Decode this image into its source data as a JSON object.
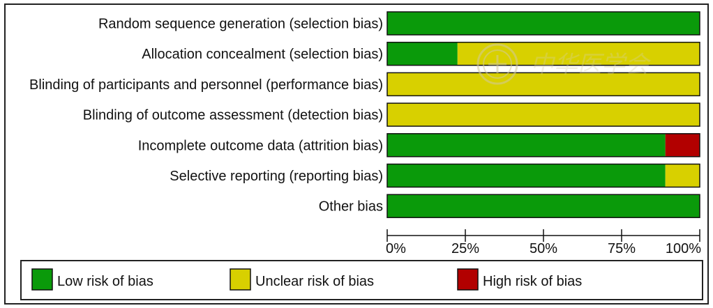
{
  "chart_data": {
    "type": "bar",
    "orientation": "horizontal",
    "stacked": true,
    "categories": [
      "Random sequence generation (selection bias)",
      "Allocation concealment (selection bias)",
      "Blinding of participants and personnel (performance bias)",
      "Blinding of outcome assessment (detection bias)",
      "Incomplete outcome data (attrition bias)",
      "Selective reporting (reporting bias)",
      "Other bias"
    ],
    "series": [
      {
        "name": "Low risk of bias",
        "color": "#0a9a0a",
        "values": [
          100,
          22.5,
          0,
          0,
          89,
          89,
          100
        ]
      },
      {
        "name": "Unclear risk of bias",
        "color": "#d8d000",
        "values": [
          0,
          77.5,
          100,
          100,
          0,
          11,
          0
        ]
      },
      {
        "name": "High risk of bias",
        "color": "#b20000",
        "values": [
          0,
          0,
          0,
          0,
          11,
          0,
          0
        ]
      }
    ],
    "xlim": [
      0,
      100
    ],
    "ticks": [
      0,
      25,
      50,
      75,
      100
    ],
    "tick_labels": [
      "0%",
      "25%",
      "50%",
      "75%",
      "100%"
    ],
    "legend_position": "bottom",
    "grid": false
  },
  "watermark": {
    "text": "中华医学会",
    "icon": "seal-emblem-icon"
  }
}
